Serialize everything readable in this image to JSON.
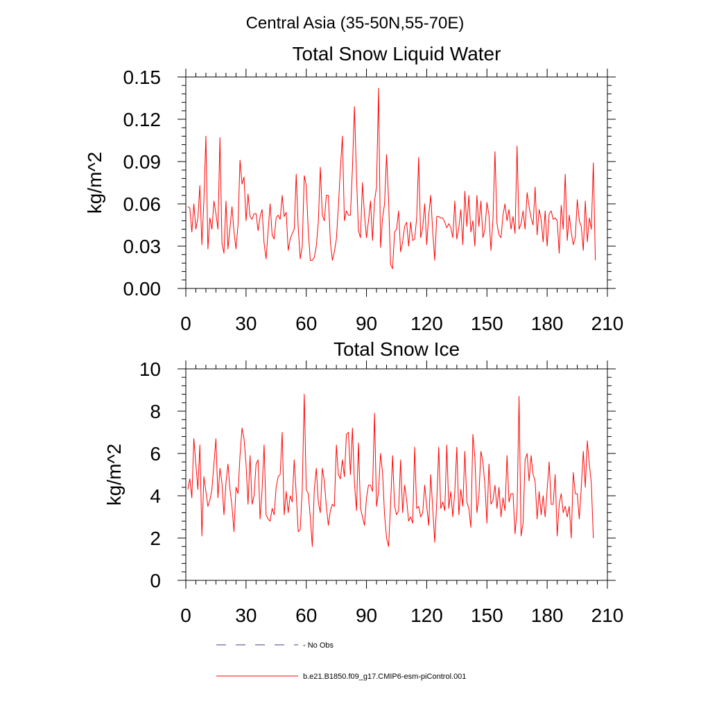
{
  "page": {
    "main_title": "Central Asia (35-50N,55-70E)"
  },
  "legend": [
    {
      "label": "No Obs",
      "color": "#3b3b8f",
      "style": "dashed"
    },
    {
      "label": "b.e21.B1850.f09_g17.CMIP6-esm-piControl.001",
      "color": "#ff0000",
      "style": "solid"
    }
  ],
  "chart_data": [
    {
      "type": "line",
      "title": "Total Snow Liquid Water",
      "xlabel": "",
      "ylabel": "kg/m^2",
      "xlim": [
        0,
        210
      ],
      "ylim": [
        0,
        0.15
      ],
      "x_ticks": [
        0,
        30,
        60,
        90,
        120,
        150,
        180,
        210
      ],
      "x_tick_labels": [
        "0",
        "30",
        "60",
        "90",
        "120",
        "150",
        "180",
        "210"
      ],
      "y_ticks": [
        0,
        0.03,
        0.06,
        0.09,
        0.12,
        0.15
      ],
      "y_tick_labels": [
        "0.00",
        "0.03",
        "0.06",
        "0.09",
        "0.12",
        "0.15"
      ],
      "series": [
        {
          "name": "b.e21.B1850.f09_g17.CMIP6-esm-piControl.001",
          "color": "#ff0000",
          "x_start": 1,
          "values": [
            0.058,
            0.057,
            0.04,
            0.06,
            0.042,
            0.05,
            0.073,
            0.031,
            0.062,
            0.108,
            0.028,
            0.05,
            0.042,
            0.062,
            0.053,
            0.042,
            0.107,
            0.032,
            0.025,
            0.062,
            0.028,
            0.043,
            0.058,
            0.04,
            0.028,
            0.045,
            0.091,
            0.074,
            0.079,
            0.048,
            0.067,
            0.051,
            0.049,
            0.053,
            0.053,
            0.041,
            0.051,
            0.056,
            0.032,
            0.021,
            0.041,
            0.06,
            0.038,
            0.035,
            0.05,
            0.052,
            0.049,
            0.066,
            0.051,
            0.054,
            0.027,
            0.035,
            0.039,
            0.042,
            0.081,
            0.043,
            0.021,
            0.03,
            0.08,
            0.073,
            0.041,
            0.02,
            0.02,
            0.022,
            0.03,
            0.047,
            0.086,
            0.052,
            0.048,
            0.066,
            0.066,
            0.033,
            0.02,
            0.026,
            0.035,
            0.058,
            0.085,
            0.108,
            0.048,
            0.055,
            0.052,
            0.052,
            0.085,
            0.129,
            0.08,
            0.041,
            0.036,
            0.075,
            0.052,
            0.036,
            0.048,
            0.062,
            0.034,
            0.062,
            0.072,
            0.142,
            0.029,
            0.05,
            0.06,
            0.095,
            0.063,
            0.017,
            0.014,
            0.04,
            0.042,
            0.055,
            0.026,
            0.033,
            0.044,
            0.047,
            0.03,
            0.047,
            0.034,
            0.035,
            0.05,
            0.093,
            0.036,
            0.043,
            0.06,
            0.031,
            0.052,
            0.066,
            0.04,
            0.02,
            0.051,
            0.051,
            0.05,
            0.05,
            0.047,
            0.043,
            0.046,
            0.043,
            0.036,
            0.062,
            0.035,
            0.043,
            0.056,
            0.031,
            0.069,
            0.044,
            0.066,
            0.04,
            0.048,
            0.03,
            0.066,
            0.044,
            0.062,
            0.036,
            0.042,
            0.061,
            0.052,
            0.027,
            0.049,
            0.097,
            0.046,
            0.038,
            0.036,
            0.052,
            0.06,
            0.048,
            0.056,
            0.042,
            0.051,
            0.039,
            0.101,
            0.042,
            0.046,
            0.055,
            0.042,
            0.068,
            0.058,
            0.05,
            0.045,
            0.072,
            0.038,
            0.056,
            0.049,
            0.033,
            0.055,
            0.03,
            0.053,
            0.055,
            0.049,
            0.05,
            0.048,
            0.025,
            0.059,
            0.042,
            0.081,
            0.034,
            0.052,
            0.04,
            0.031,
            0.036,
            0.063,
            0.048,
            0.044,
            0.027,
            0.062,
            0.033,
            0.05,
            0.042,
            0.089,
            0.02
          ]
        }
      ]
    },
    {
      "type": "line",
      "title": "Total Snow Ice",
      "xlabel": "",
      "ylabel": "kg/m^2",
      "xlim": [
        0,
        210
      ],
      "ylim": [
        0,
        10
      ],
      "x_ticks": [
        0,
        30,
        60,
        90,
        120,
        150,
        180,
        210
      ],
      "x_tick_labels": [
        "0",
        "30",
        "60",
        "90",
        "120",
        "150",
        "180",
        "210"
      ],
      "y_ticks": [
        0,
        2,
        4,
        6,
        8,
        10
      ],
      "y_tick_labels": [
        "0",
        "2",
        "4",
        "6",
        "8",
        "10"
      ],
      "series": [
        {
          "name": "b.e21.B1850.f09_g17.CMIP6-esm-piControl.001",
          "color": "#ff0000",
          "x_start": 1,
          "values": [
            4.3,
            4.8,
            3.9,
            6.7,
            5.5,
            4.3,
            6.4,
            2.1,
            4.9,
            4.2,
            3.5,
            3.8,
            4.3,
            5.5,
            6.7,
            3.9,
            5.3,
            4.6,
            3.1,
            4.6,
            5.5,
            4.3,
            3.5,
            2.3,
            4.4,
            4.1,
            5.9,
            7.2,
            6.7,
            5.5,
            3.6,
            5.9,
            3.6,
            4.0,
            5.5,
            5.7,
            2.9,
            4.3,
            6.4,
            3.1,
            2.9,
            2.8,
            3.4,
            3.1,
            4.4,
            4.9,
            5.0,
            7.0,
            3.1,
            4.2,
            3.2,
            4.0,
            3.7,
            5.7,
            4.1,
            2.3,
            2.4,
            4.3,
            8.8,
            4.3,
            4.1,
            3.0,
            1.6,
            4.3,
            5.3,
            3.7,
            3.2,
            5.3,
            4.7,
            3.5,
            2.6,
            3.3,
            3.6,
            3.5,
            6.4,
            5.0,
            4.8,
            5.7,
            4.9,
            6.9,
            7.0,
            5.0,
            7.2,
            4.6,
            3.3,
            6.5,
            3.4,
            3.0,
            2.6,
            3.9,
            4.5,
            4.5,
            4.2,
            7.9,
            3.5,
            4.2,
            6.0,
            5.1,
            3.1,
            2.0,
            1.6,
            3.6,
            5.9,
            3.5,
            3.1,
            3.3,
            5.7,
            3.2,
            4.5,
            3.8,
            2.8,
            3.0,
            2.7,
            6.3,
            3.4,
            3.5,
            3.0,
            3.2,
            4.5,
            3.5,
            2.6,
            5.0,
            3.4,
            1.8,
            3.7,
            6.3,
            3.4,
            3.7,
            3.3,
            6.4,
            3.4,
            4.2,
            3.0,
            4.2,
            6.3,
            3.1,
            4.3,
            3.5,
            6.1,
            3.7,
            3.4,
            2.5,
            6.9,
            5.8,
            3.2,
            4.0,
            6.1,
            5.6,
            4.5,
            2.7,
            5.5,
            3.6,
            3.8,
            4.5,
            3.4,
            4.4,
            3.0,
            3.9,
            3.3,
            5.9,
            3.7,
            4.1,
            4.1,
            2.2,
            3.3,
            8.7,
            2.1,
            2.7,
            5.7,
            6.0,
            4.7,
            5.9,
            5.0,
            4.7,
            2.9,
            4.2,
            3.1,
            4.0,
            3.0,
            4.3,
            5.6,
            3.6,
            3.6,
            5.0,
            2.1,
            3.6,
            4.1,
            3.2,
            3.5,
            3.0,
            3.5,
            2.0,
            5.1,
            4.1,
            4.1,
            2.9,
            4.4,
            6.1,
            4.4,
            6.6,
            5.5,
            4.6,
            2.0
          ]
        }
      ]
    }
  ]
}
